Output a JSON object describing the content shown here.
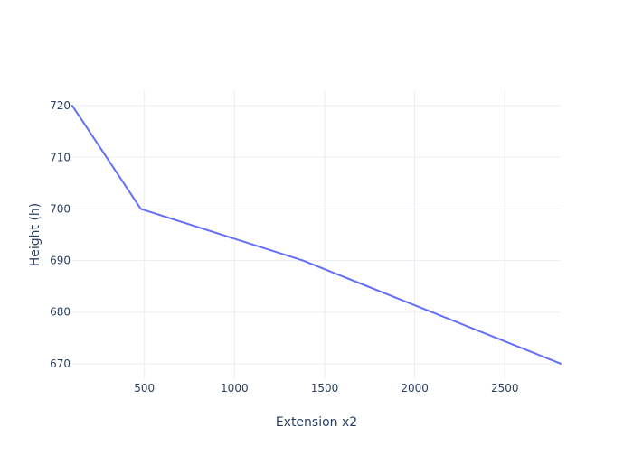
{
  "chart_data": {
    "type": "line",
    "title": "",
    "xlabel": "Extension x2",
    "ylabel": "Height (h)",
    "xlim": [
      100,
      2810
    ],
    "ylim": [
      667,
      723
    ],
    "x_ticks": [
      500,
      1000,
      1500,
      2000,
      2500
    ],
    "y_ticks": [
      670,
      680,
      690,
      700,
      710,
      720
    ],
    "grid": true,
    "series": [
      {
        "x": [
          100,
          480,
          1380,
          2810
        ],
        "y": [
          720,
          700,
          690,
          670
        ]
      }
    ],
    "colors": {
      "line": "#636efa",
      "grid": "#ebedf2",
      "axis_text": "#2a3f5f"
    }
  }
}
